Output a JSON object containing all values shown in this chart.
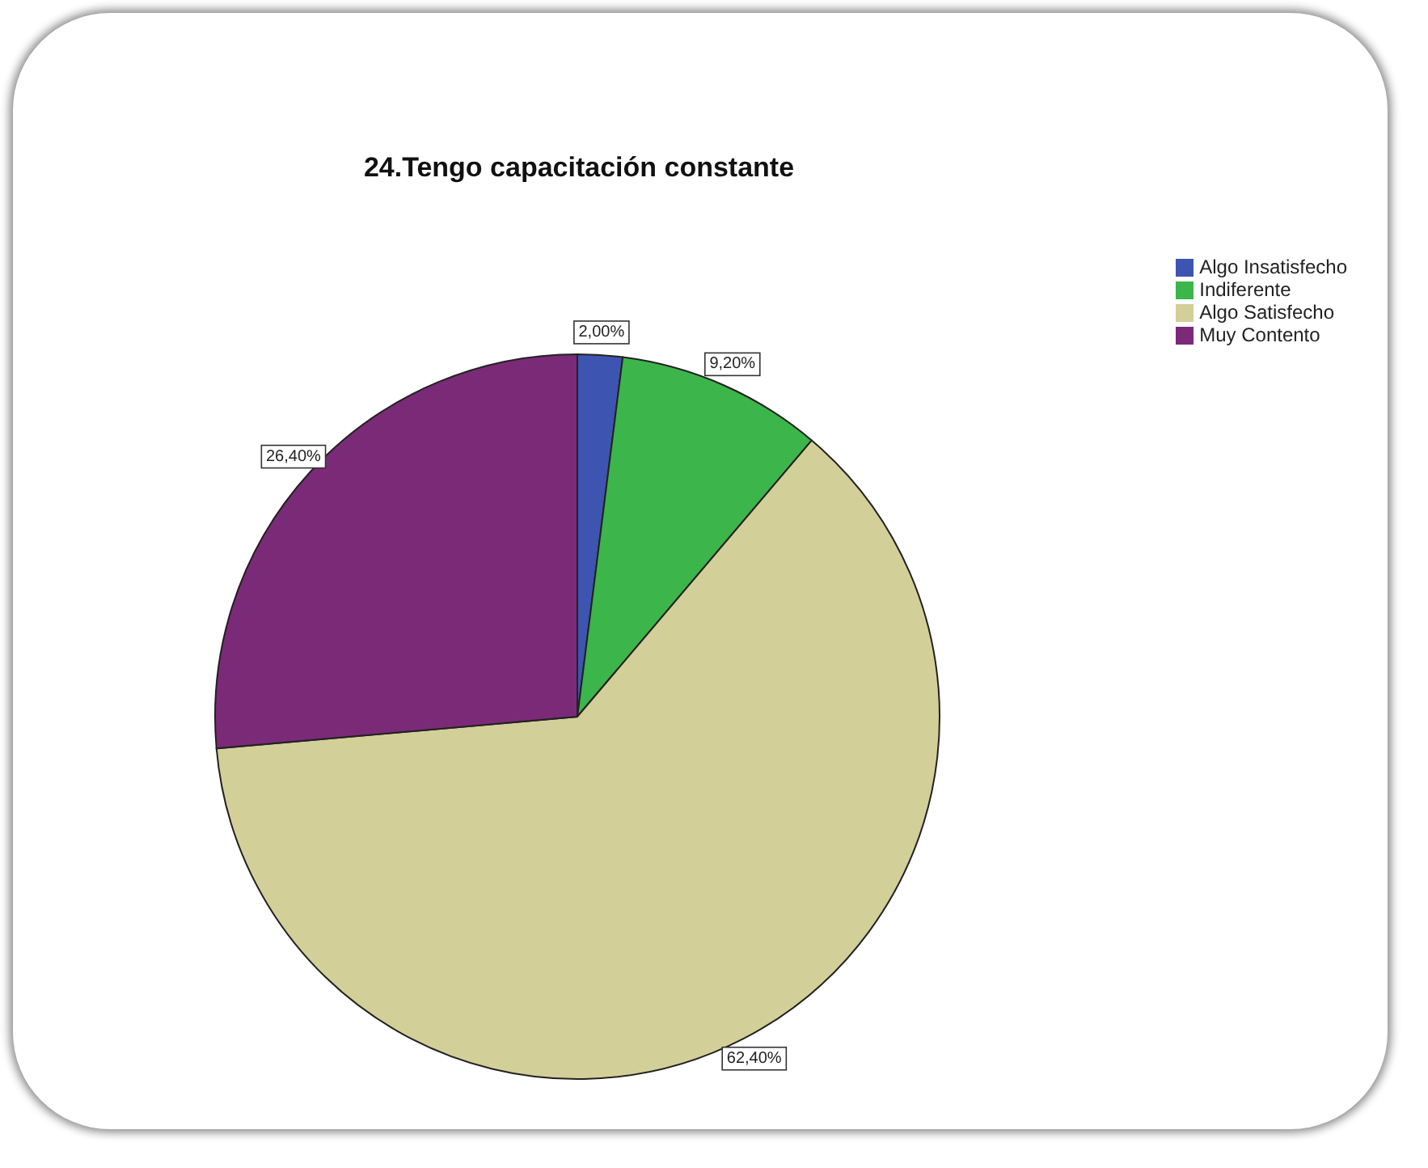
{
  "chart_data": {
    "type": "pie",
    "title": "24.Tengo capacitación constante",
    "categories": [
      "Algo Insatisfecho",
      "Indiferente",
      "Algo Satisfecho",
      "Muy Contento"
    ],
    "values": [
      2.0,
      9.2,
      62.4,
      26.4
    ],
    "colors": [
      "#3d55b0",
      "#3cb54a",
      "#d3cf98",
      "#7b2a78"
    ],
    "value_labels": [
      "2,00%",
      "9,20%",
      "62,40%",
      "26,40%"
    ],
    "legend": "top right"
  }
}
